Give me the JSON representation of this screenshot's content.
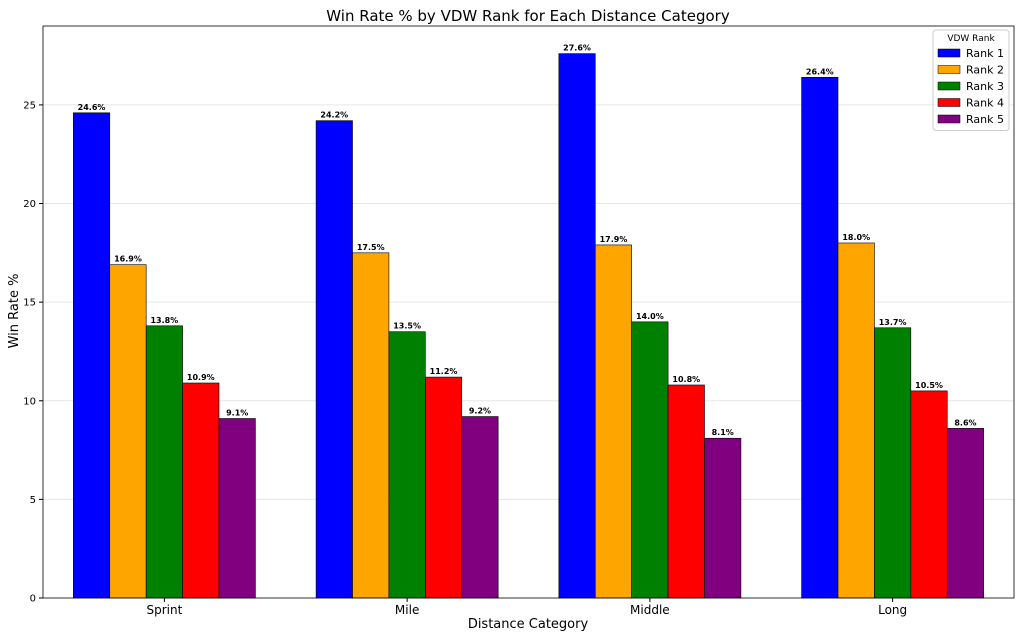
{
  "chart_data": {
    "type": "bar",
    "title": "Win Rate % by VDW Rank for Each Distance Category",
    "xlabel": "Distance Category",
    "ylabel": "Win Rate %",
    "categories": [
      "Sprint",
      "Mile",
      "Middle",
      "Long"
    ],
    "ylim": [
      0,
      29
    ],
    "yticks": [
      0,
      5,
      10,
      15,
      20,
      25
    ],
    "grid": true,
    "legend": {
      "title": "VDW Rank",
      "placement": "top-right"
    },
    "series": [
      {
        "name": "Rank 1",
        "color": "#0000ff",
        "values": [
          24.6,
          24.2,
          27.6,
          26.4
        ],
        "labels": [
          "24.6%",
          "24.2%",
          "27.6%",
          "26.4%"
        ]
      },
      {
        "name": "Rank 2",
        "color": "#ffa500",
        "values": [
          16.9,
          17.5,
          17.9,
          18.0
        ],
        "labels": [
          "16.9%",
          "17.5%",
          "17.9%",
          "18.0%"
        ]
      },
      {
        "name": "Rank 3",
        "color": "#008000",
        "values": [
          13.8,
          13.5,
          14.0,
          13.7
        ],
        "labels": [
          "13.8%",
          "13.5%",
          "14.0%",
          "13.7%"
        ]
      },
      {
        "name": "Rank 4",
        "color": "#ff0000",
        "values": [
          10.9,
          11.2,
          10.8,
          10.5
        ],
        "labels": [
          "10.9%",
          "11.2%",
          "10.8%",
          "10.5%"
        ]
      },
      {
        "name": "Rank 5",
        "color": "#800080",
        "values": [
          9.1,
          9.2,
          8.1,
          8.6
        ],
        "labels": [
          "9.1%",
          "9.2%",
          "8.1%",
          "8.6%"
        ]
      }
    ]
  }
}
